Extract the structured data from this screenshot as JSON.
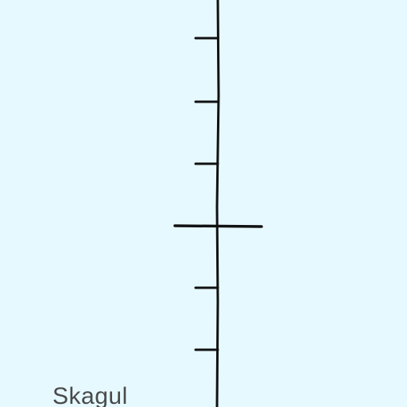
{
  "map": {
    "background_color": "#e6f9fe",
    "line_color": "#111111",
    "place_label": "Skagul",
    "label_color": "#4a4a4a"
  }
}
